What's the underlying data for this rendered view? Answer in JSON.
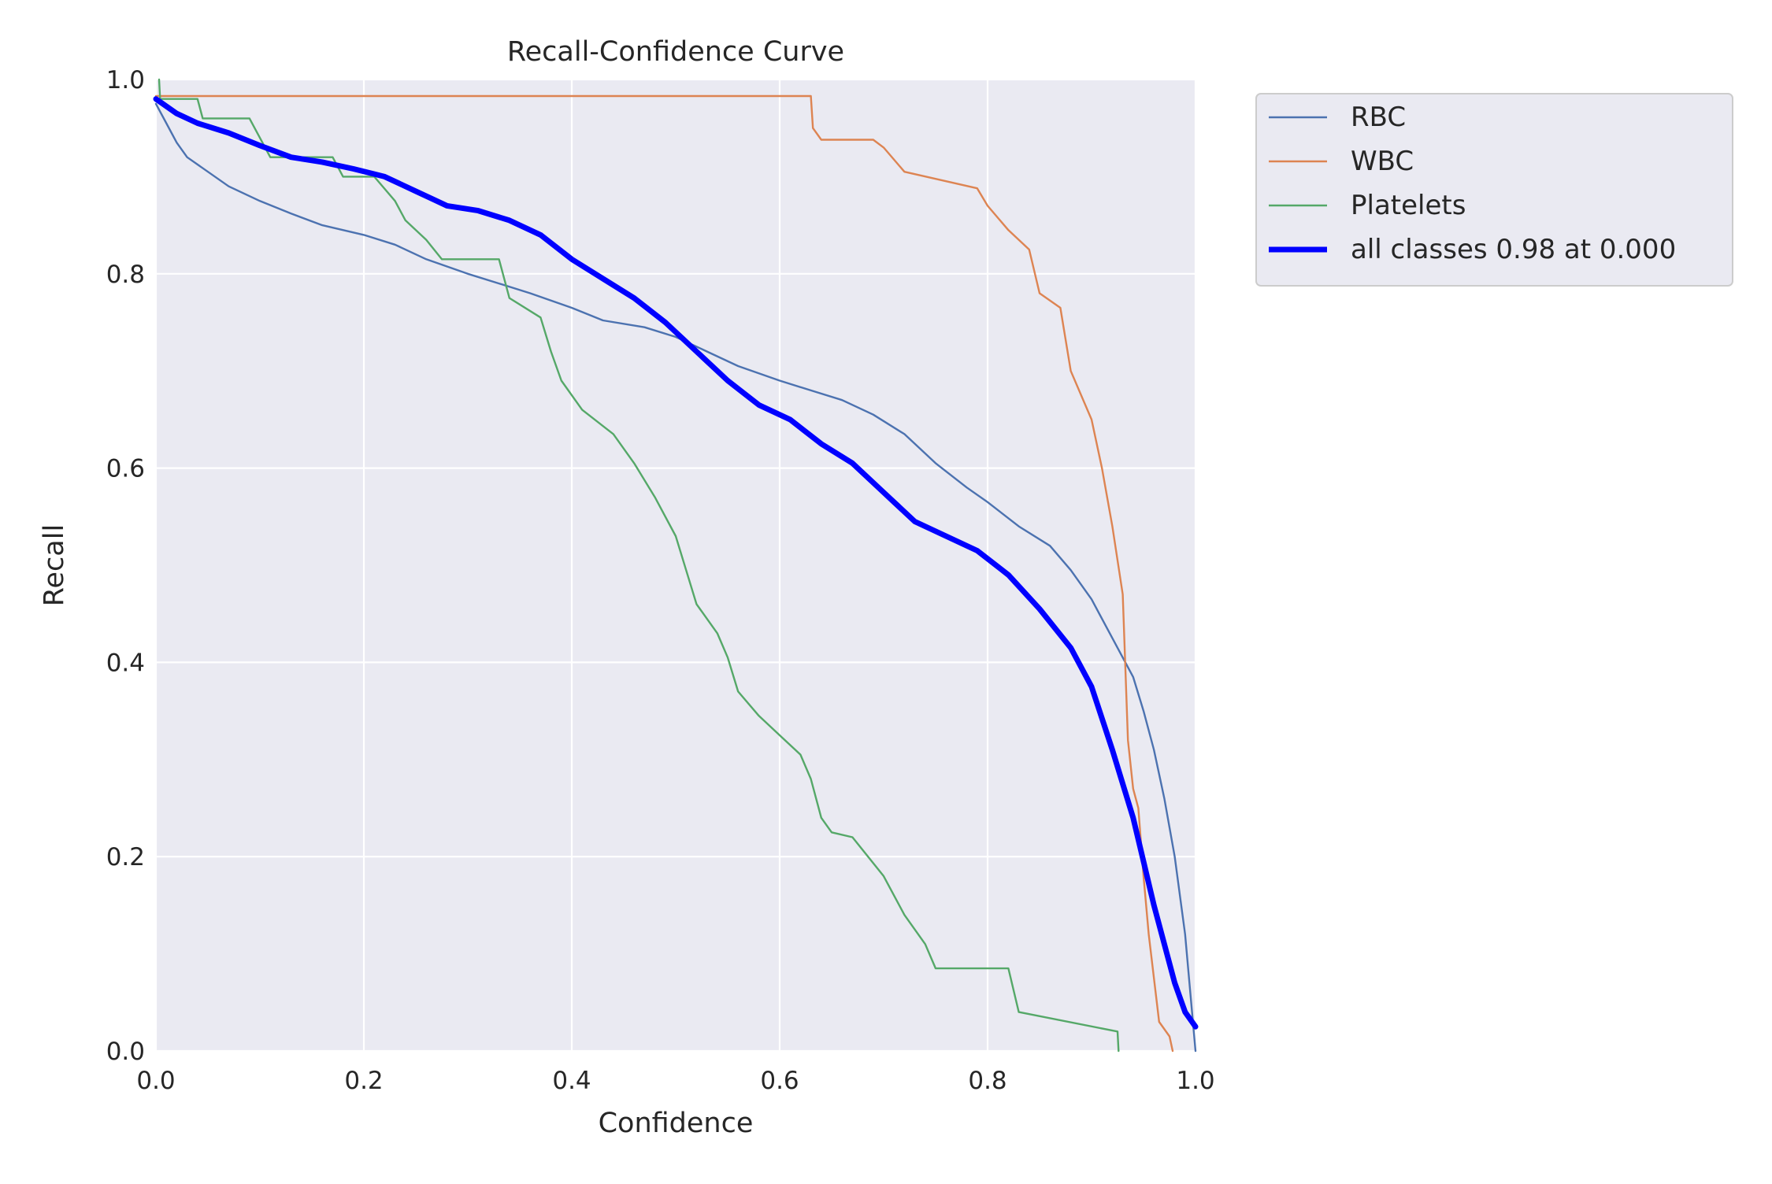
{
  "chart_data": {
    "type": "line",
    "title": "Recall-Confidence Curve",
    "xlabel": "Confidence",
    "ylabel": "Recall",
    "xlim": [
      0,
      1
    ],
    "ylim": [
      0,
      1
    ],
    "xticks": [
      "0.0",
      "0.2",
      "0.4",
      "0.6",
      "0.8",
      "1.0"
    ],
    "yticks": [
      "0.0",
      "0.2",
      "0.4",
      "0.6",
      "0.8",
      "1.0"
    ],
    "grid": true,
    "legend_position": "outside-top-right",
    "series": [
      {
        "name": "RBC",
        "color": "#4c72b0",
        "width": "thin",
        "points": [
          [
            0,
            0.975
          ],
          [
            0.01,
            0.955
          ],
          [
            0.02,
            0.935
          ],
          [
            0.03,
            0.92
          ],
          [
            0.05,
            0.905
          ],
          [
            0.07,
            0.89
          ],
          [
            0.1,
            0.875
          ],
          [
            0.13,
            0.862
          ],
          [
            0.16,
            0.85
          ],
          [
            0.2,
            0.84
          ],
          [
            0.23,
            0.83
          ],
          [
            0.26,
            0.815
          ],
          [
            0.3,
            0.8
          ],
          [
            0.33,
            0.79
          ],
          [
            0.36,
            0.78
          ],
          [
            0.4,
            0.765
          ],
          [
            0.43,
            0.752
          ],
          [
            0.47,
            0.745
          ],
          [
            0.5,
            0.735
          ],
          [
            0.53,
            0.72
          ],
          [
            0.56,
            0.705
          ],
          [
            0.6,
            0.69
          ],
          [
            0.63,
            0.68
          ],
          [
            0.66,
            0.67
          ],
          [
            0.69,
            0.655
          ],
          [
            0.72,
            0.635
          ],
          [
            0.75,
            0.605
          ],
          [
            0.78,
            0.58
          ],
          [
            0.8,
            0.565
          ],
          [
            0.83,
            0.54
          ],
          [
            0.86,
            0.52
          ],
          [
            0.88,
            0.495
          ],
          [
            0.9,
            0.465
          ],
          [
            0.92,
            0.425
          ],
          [
            0.94,
            0.385
          ],
          [
            0.95,
            0.35
          ],
          [
            0.96,
            0.31
          ],
          [
            0.97,
            0.26
          ],
          [
            0.98,
            0.2
          ],
          [
            0.99,
            0.12
          ],
          [
            0.995,
            0.06
          ],
          [
            1.0,
            0.0
          ]
        ]
      },
      {
        "name": "WBC",
        "color": "#dd8452",
        "width": "thin",
        "points": [
          [
            0,
            0.983
          ],
          [
            0.63,
            0.983
          ],
          [
            0.632,
            0.95
          ],
          [
            0.64,
            0.938
          ],
          [
            0.69,
            0.938
          ],
          [
            0.7,
            0.93
          ],
          [
            0.72,
            0.905
          ],
          [
            0.79,
            0.888
          ],
          [
            0.8,
            0.87
          ],
          [
            0.82,
            0.845
          ],
          [
            0.84,
            0.825
          ],
          [
            0.85,
            0.78
          ],
          [
            0.87,
            0.765
          ],
          [
            0.88,
            0.7
          ],
          [
            0.9,
            0.65
          ],
          [
            0.91,
            0.6
          ],
          [
            0.92,
            0.54
          ],
          [
            0.93,
            0.47
          ],
          [
            0.935,
            0.32
          ],
          [
            0.94,
            0.27
          ],
          [
            0.945,
            0.25
          ],
          [
            0.95,
            0.18
          ],
          [
            0.955,
            0.12
          ],
          [
            0.965,
            0.03
          ],
          [
            0.975,
            0.015
          ],
          [
            0.978,
            0.0
          ]
        ]
      },
      {
        "name": "Platelets",
        "color": "#55a868",
        "width": "thin",
        "points": [
          [
            0.003,
            1.0
          ],
          [
            0.004,
            0.98
          ],
          [
            0.04,
            0.98
          ],
          [
            0.045,
            0.96
          ],
          [
            0.09,
            0.96
          ],
          [
            0.11,
            0.92
          ],
          [
            0.17,
            0.92
          ],
          [
            0.18,
            0.9
          ],
          [
            0.21,
            0.9
          ],
          [
            0.23,
            0.875
          ],
          [
            0.24,
            0.855
          ],
          [
            0.26,
            0.835
          ],
          [
            0.275,
            0.815
          ],
          [
            0.33,
            0.815
          ],
          [
            0.34,
            0.775
          ],
          [
            0.37,
            0.755
          ],
          [
            0.38,
            0.72
          ],
          [
            0.39,
            0.69
          ],
          [
            0.41,
            0.66
          ],
          [
            0.44,
            0.635
          ],
          [
            0.46,
            0.605
          ],
          [
            0.48,
            0.57
          ],
          [
            0.5,
            0.53
          ],
          [
            0.51,
            0.495
          ],
          [
            0.52,
            0.46
          ],
          [
            0.54,
            0.43
          ],
          [
            0.55,
            0.405
          ],
          [
            0.56,
            0.37
          ],
          [
            0.58,
            0.345
          ],
          [
            0.6,
            0.325
          ],
          [
            0.62,
            0.305
          ],
          [
            0.63,
            0.28
          ],
          [
            0.64,
            0.24
          ],
          [
            0.65,
            0.225
          ],
          [
            0.67,
            0.22
          ],
          [
            0.7,
            0.18
          ],
          [
            0.72,
            0.14
          ],
          [
            0.74,
            0.11
          ],
          [
            0.75,
            0.085
          ],
          [
            0.82,
            0.085
          ],
          [
            0.83,
            0.04
          ],
          [
            0.925,
            0.02
          ],
          [
            0.926,
            0.0
          ]
        ]
      },
      {
        "name": "all classes 0.98 at 0.000",
        "color": "#0000ff",
        "width": "thick",
        "points": [
          [
            0,
            0.98
          ],
          [
            0.02,
            0.965
          ],
          [
            0.04,
            0.955
          ],
          [
            0.07,
            0.945
          ],
          [
            0.1,
            0.932
          ],
          [
            0.13,
            0.92
          ],
          [
            0.16,
            0.915
          ],
          [
            0.19,
            0.908
          ],
          [
            0.22,
            0.9
          ],
          [
            0.25,
            0.885
          ],
          [
            0.28,
            0.87
          ],
          [
            0.31,
            0.865
          ],
          [
            0.34,
            0.855
          ],
          [
            0.37,
            0.84
          ],
          [
            0.4,
            0.815
          ],
          [
            0.43,
            0.795
          ],
          [
            0.46,
            0.775
          ],
          [
            0.49,
            0.75
          ],
          [
            0.52,
            0.72
          ],
          [
            0.55,
            0.69
          ],
          [
            0.58,
            0.665
          ],
          [
            0.61,
            0.65
          ],
          [
            0.64,
            0.625
          ],
          [
            0.67,
            0.605
          ],
          [
            0.7,
            0.575
          ],
          [
            0.73,
            0.545
          ],
          [
            0.76,
            0.53
          ],
          [
            0.79,
            0.515
          ],
          [
            0.82,
            0.49
          ],
          [
            0.85,
            0.455
          ],
          [
            0.88,
            0.415
          ],
          [
            0.9,
            0.375
          ],
          [
            0.92,
            0.31
          ],
          [
            0.94,
            0.24
          ],
          [
            0.96,
            0.15
          ],
          [
            0.98,
            0.07
          ],
          [
            0.99,
            0.04
          ],
          [
            1.0,
            0.025
          ]
        ]
      }
    ]
  }
}
